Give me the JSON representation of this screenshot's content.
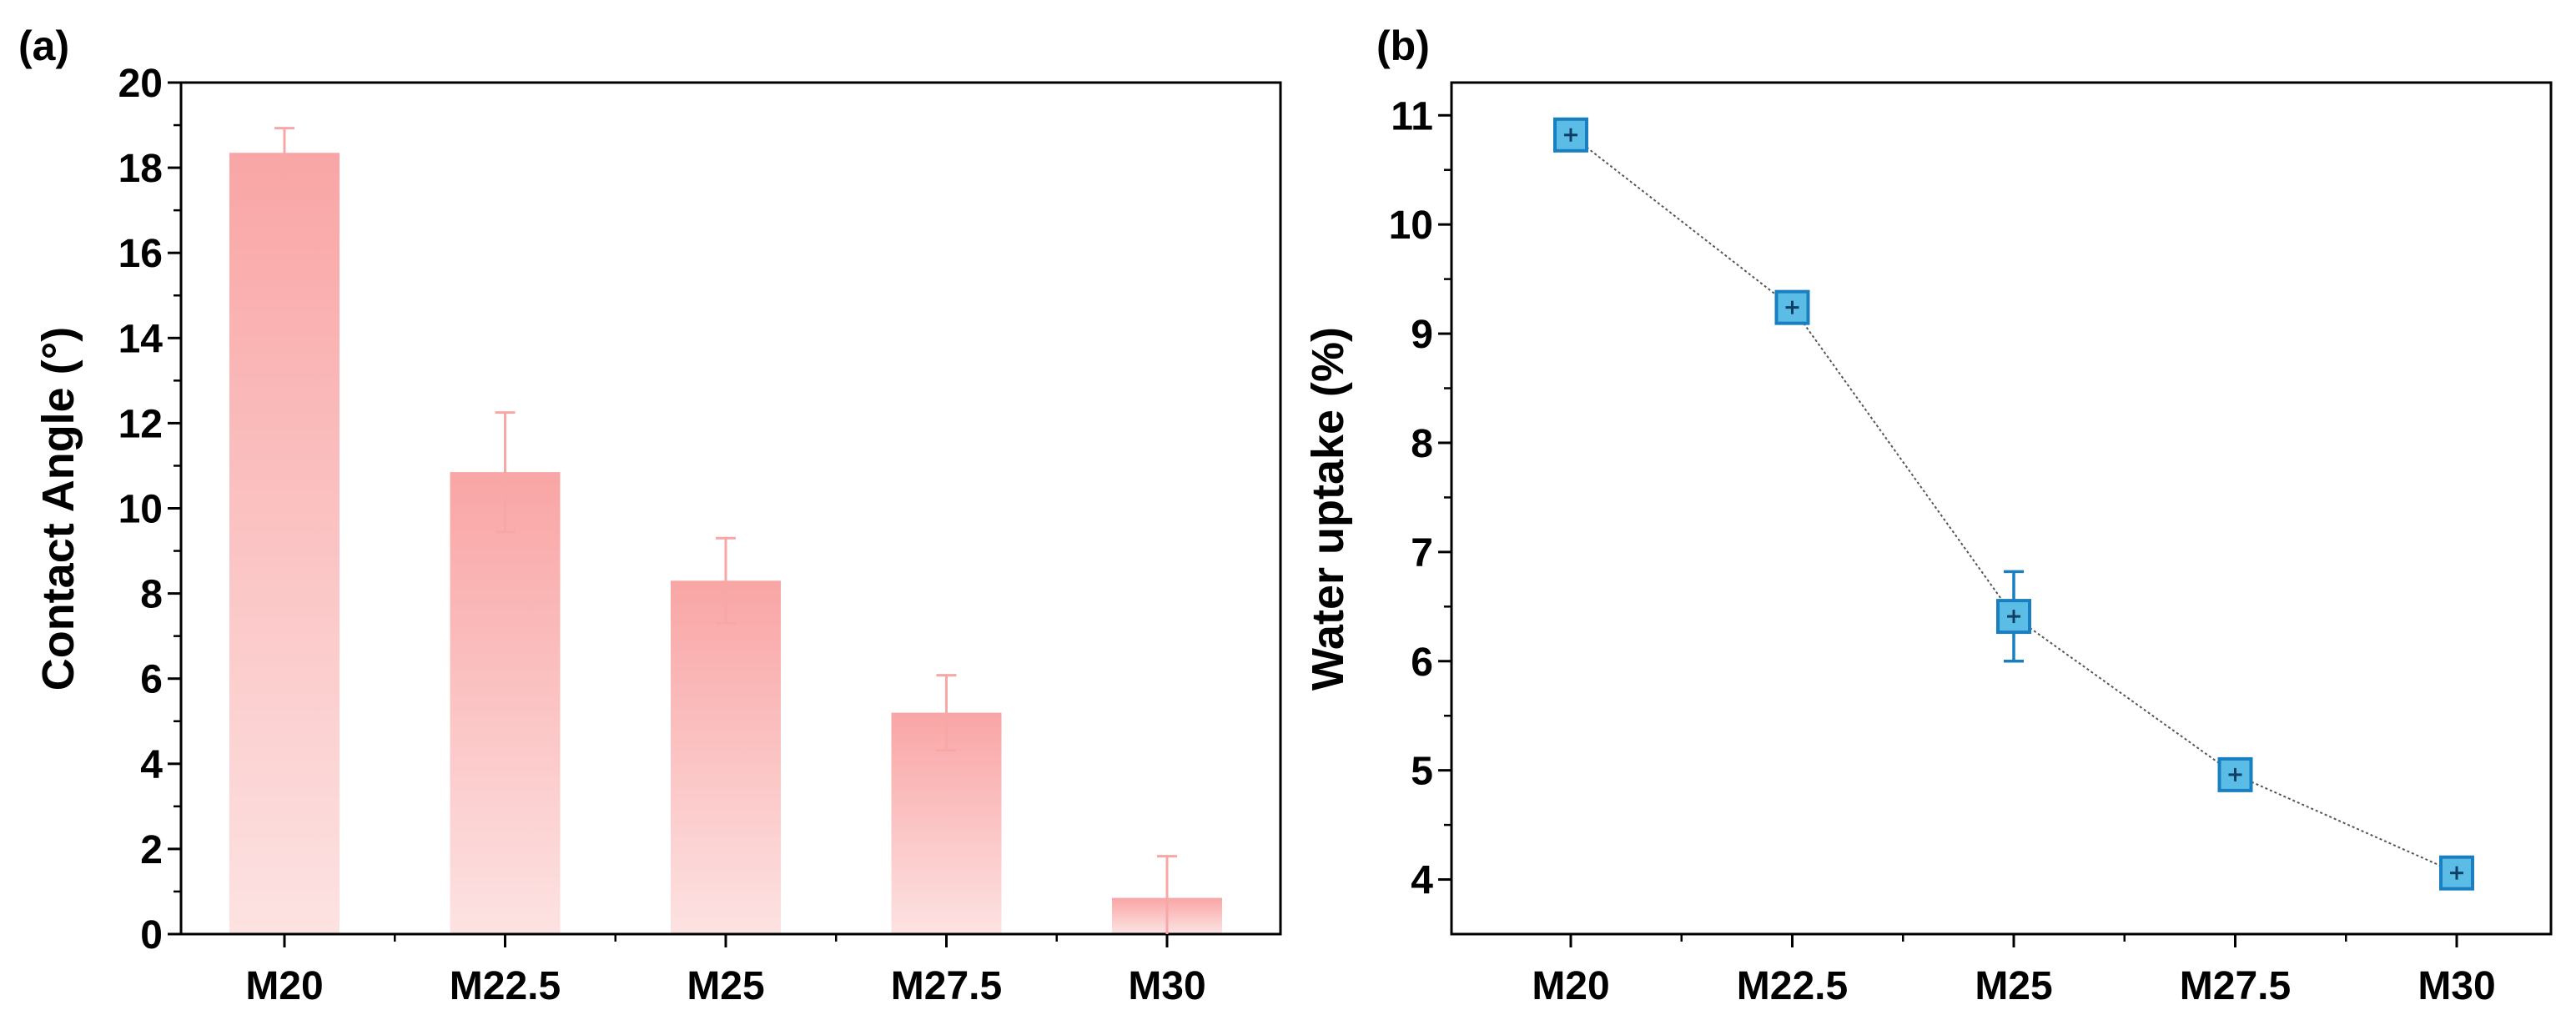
{
  "chart_data": [
    {
      "panel_label": "(a)",
      "type": "bar",
      "categories": [
        "M20",
        "M22.5",
        "M25",
        "M27.5",
        "M30"
      ],
      "values": [
        18.35,
        10.85,
        8.3,
        5.2,
        0.85
      ],
      "errors": [
        0.58,
        1.4,
        1.0,
        0.88,
        0.98
      ],
      "xlabel": "",
      "ylabel": "Contact Angle (°)",
      "ylim": [
        0,
        20
      ],
      "yticks": [
        "0",
        "2",
        "4",
        "6",
        "8",
        "10",
        "12",
        "14",
        "16",
        "18",
        "20"
      ],
      "bar_color": "#f8a7a7",
      "grid": false
    },
    {
      "panel_label": "(b)",
      "type": "line",
      "categories": [
        "M20",
        "M22.5",
        "M25",
        "M27.5",
        "M30"
      ],
      "values": [
        10.82,
        9.24,
        6.41,
        4.96,
        4.06
      ],
      "errors": [
        0.08,
        0.08,
        0.41,
        0.08,
        0.08
      ],
      "xlabel": "",
      "ylabel": "Water uptake (%)",
      "ylim": [
        3.5,
        11.3
      ],
      "yticks": [
        "4",
        "5",
        "6",
        "7",
        "8",
        "9",
        "10",
        "11"
      ],
      "marker": "square",
      "marker_color": "#5bbde6",
      "marker_edge_color": "#1a7fc1",
      "line_color": "#555555",
      "grid": false
    }
  ]
}
